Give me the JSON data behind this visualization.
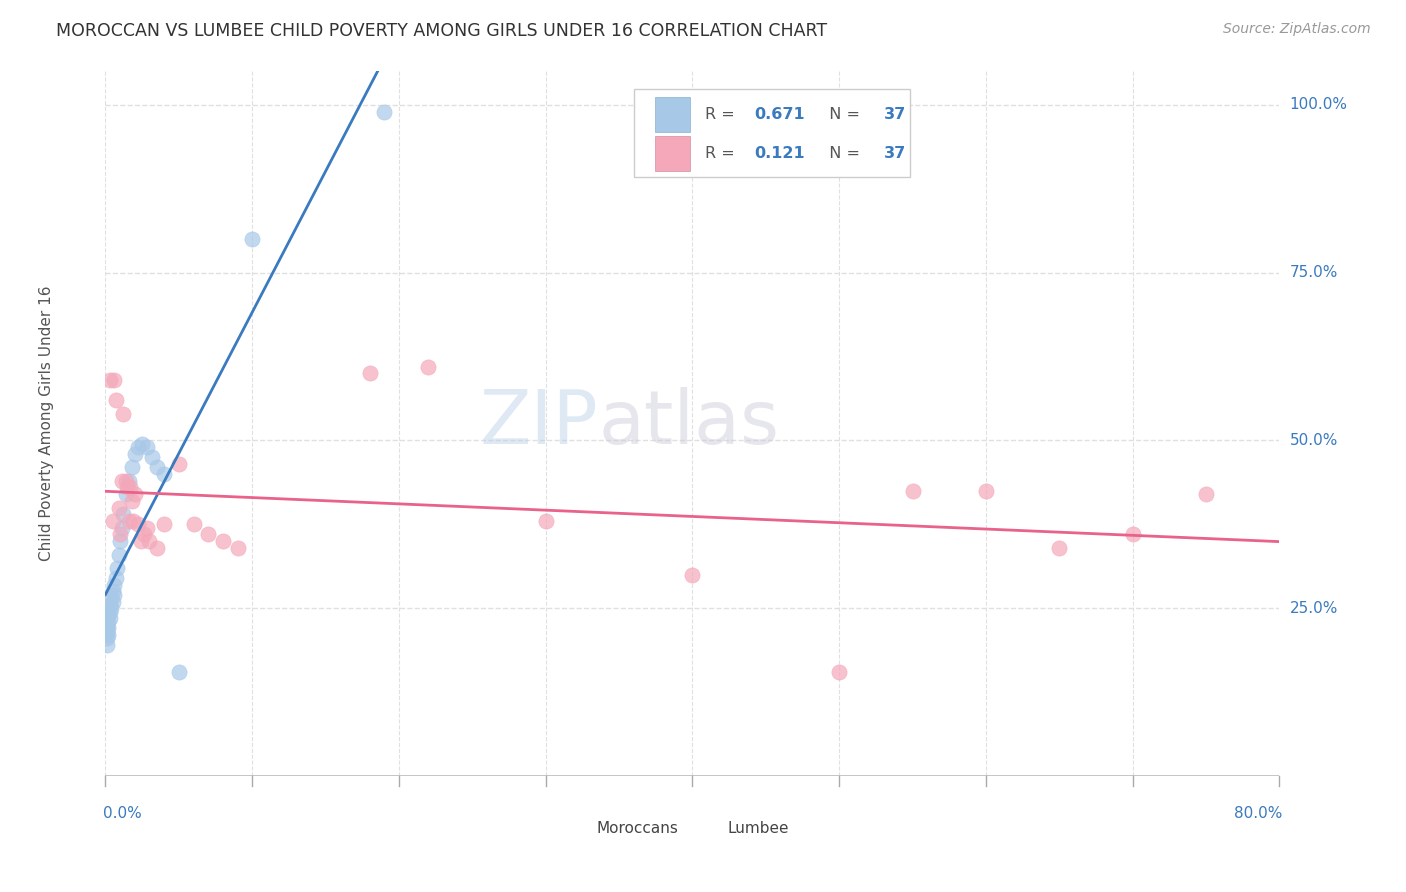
{
  "title": "MOROCCAN VS LUMBEE CHILD POVERTY AMONG GIRLS UNDER 16 CORRELATION CHART",
  "source": "Source: ZipAtlas.com",
  "ylabel": "Child Poverty Among Girls Under 16",
  "xmin": 0.0,
  "xmax": 0.8,
  "ymin": 0.0,
  "ymax": 1.05,
  "ytick_values": [
    0.25,
    0.5,
    0.75,
    1.0
  ],
  "ytick_labels": [
    "25.0%",
    "50.0%",
    "75.0%",
    "100.0%"
  ],
  "moroccan_color": "#a8c8e8",
  "lumbee_color": "#f4a8ba",
  "moroccan_line_color": "#3a7abf",
  "lumbee_line_color": "#e8628a",
  "moroccan_R": "0.671",
  "moroccan_N": "37",
  "lumbee_R": "0.121",
  "lumbee_N": "37",
  "watermark": "ZIPatlas",
  "background_color": "#ffffff",
  "grid_color": "#e0e0e0",
  "moroccan_x": [
    0.001,
    0.001,
    0.001,
    0.001,
    0.001,
    0.002,
    0.002,
    0.002,
    0.002,
    0.003,
    0.003,
    0.003,
    0.004,
    0.004,
    0.005,
    0.005,
    0.006,
    0.006,
    0.007,
    0.008,
    0.009,
    0.01,
    0.011,
    0.012,
    0.014,
    0.016,
    0.018,
    0.02,
    0.022,
    0.025,
    0.028,
    0.032,
    0.035,
    0.04,
    0.05,
    0.1,
    0.19
  ],
  "moroccan_y": [
    0.195,
    0.205,
    0.215,
    0.22,
    0.225,
    0.21,
    0.22,
    0.23,
    0.24,
    0.235,
    0.245,
    0.255,
    0.25,
    0.265,
    0.26,
    0.275,
    0.27,
    0.285,
    0.295,
    0.31,
    0.33,
    0.35,
    0.37,
    0.39,
    0.42,
    0.44,
    0.46,
    0.48,
    0.49,
    0.495,
    0.49,
    0.475,
    0.46,
    0.45,
    0.155,
    0.8,
    0.99
  ],
  "lumbee_x": [
    0.003,
    0.005,
    0.006,
    0.007,
    0.009,
    0.01,
    0.011,
    0.012,
    0.014,
    0.015,
    0.016,
    0.017,
    0.018,
    0.019,
    0.02,
    0.022,
    0.024,
    0.026,
    0.028,
    0.03,
    0.035,
    0.04,
    0.05,
    0.06,
    0.07,
    0.08,
    0.09,
    0.18,
    0.22,
    0.3,
    0.4,
    0.5,
    0.55,
    0.6,
    0.65,
    0.7,
    0.75
  ],
  "lumbee_y": [
    0.59,
    0.38,
    0.59,
    0.56,
    0.4,
    0.36,
    0.44,
    0.54,
    0.44,
    0.43,
    0.38,
    0.43,
    0.41,
    0.38,
    0.42,
    0.375,
    0.35,
    0.36,
    0.37,
    0.35,
    0.34,
    0.375,
    0.465,
    0.375,
    0.36,
    0.35,
    0.34,
    0.6,
    0.61,
    0.38,
    0.3,
    0.155,
    0.425,
    0.425,
    0.34,
    0.36,
    0.42
  ]
}
